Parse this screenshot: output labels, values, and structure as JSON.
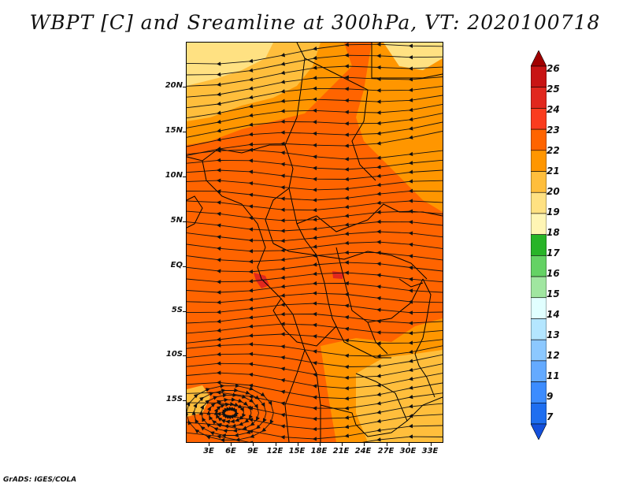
{
  "title": "WBPT [C] and Sreamline at 300hPa, VT: 2020100718",
  "credit": "GrADS: IGES/COLA",
  "map": {
    "lat_labels": [
      "20N",
      "15N",
      "10N",
      "5N",
      "EQ",
      "5S",
      "10S",
      "15S"
    ],
    "lon_labels": [
      "3E",
      "6E",
      "9E",
      "12E",
      "15E",
      "18E",
      "21E",
      "24E",
      "27E",
      "30E",
      "33E"
    ],
    "field_colors": {
      "base": "#ff6400",
      "warm": "#ff9600",
      "yellow_orange": "#ffbe3c",
      "light_yellow": "#ffe182",
      "pale_yellow": "#fff5b4",
      "red": "#e1281e",
      "boundary": "#000000",
      "streamline": "#111111"
    }
  },
  "colorbar": {
    "labels": [
      "26",
      "25",
      "24",
      "23",
      "22",
      "21",
      "20",
      "19",
      "18",
      "17",
      "16",
      "15",
      "14",
      "13",
      "12",
      "11",
      "9",
      "7"
    ],
    "colors": [
      "#a00000",
      "#c81414",
      "#e1281e",
      "#fa3c1e",
      "#ff6400",
      "#ff9600",
      "#ffbe3c",
      "#ffe182",
      "#fff5b4",
      "#28b428",
      "#64d264",
      "#a0e6a0",
      "#e1ffff",
      "#b4e6ff",
      "#8cc8ff",
      "#64aaff",
      "#3c8cff",
      "#1e6ef0",
      "#1450dc"
    ]
  }
}
